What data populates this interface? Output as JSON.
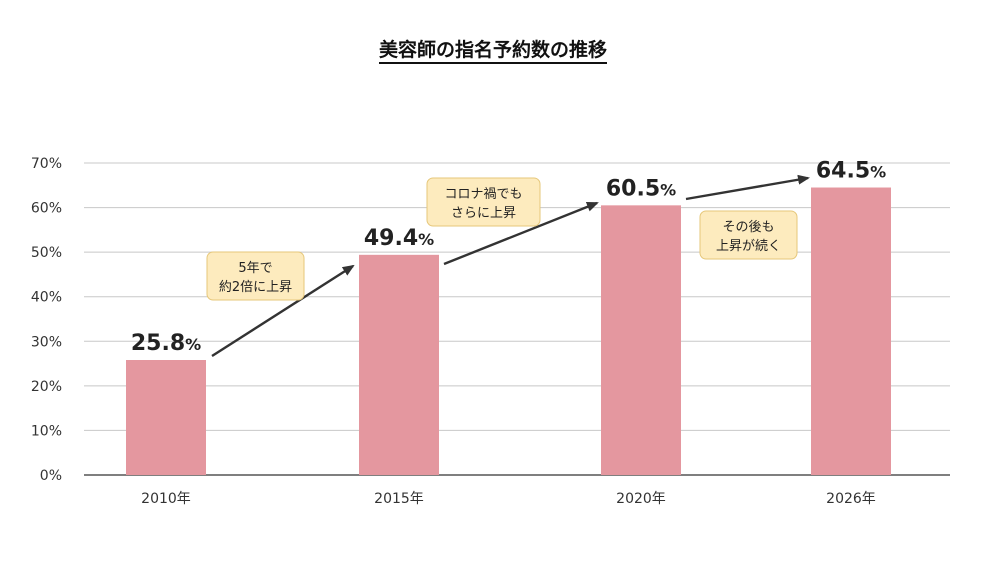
{
  "chart_data": {
    "type": "bar",
    "title": "美容師の指名予約数の推移",
    "categories": [
      "2010年",
      "2015年",
      "2020年",
      "2026年"
    ],
    "values": [
      25.8,
      49.4,
      60.5,
      64.5
    ],
    "value_labels": [
      "25.8%",
      "49.4%",
      "60.5%",
      "64.5%"
    ],
    "ylim": [
      0,
      70
    ],
    "yticks": [
      "0%",
      "10%",
      "20%",
      "30%",
      "40%",
      "50%",
      "60%",
      "70%"
    ],
    "xlabel": "",
    "ylabel": "",
    "grid": true,
    "bar_color": "#e4979f",
    "annotations": [
      {
        "lines": [
          "5年で",
          "約2倍に上昇"
        ],
        "between": [
          0,
          1
        ]
      },
      {
        "lines": [
          "コロナ禍でも",
          "さらに上昇"
        ],
        "between": [
          1,
          2
        ]
      },
      {
        "lines": [
          "その後も",
          "上昇が続く"
        ],
        "between": [
          2,
          3
        ]
      }
    ]
  },
  "colors": {
    "bar": "#e4979f",
    "grid": "#c8c8c8",
    "axis": "#333333",
    "text": "#333333",
    "label": "#222222",
    "arrow": "#333333",
    "note_fill": "#fdebbe",
    "note_stroke": "#e6c77a"
  }
}
